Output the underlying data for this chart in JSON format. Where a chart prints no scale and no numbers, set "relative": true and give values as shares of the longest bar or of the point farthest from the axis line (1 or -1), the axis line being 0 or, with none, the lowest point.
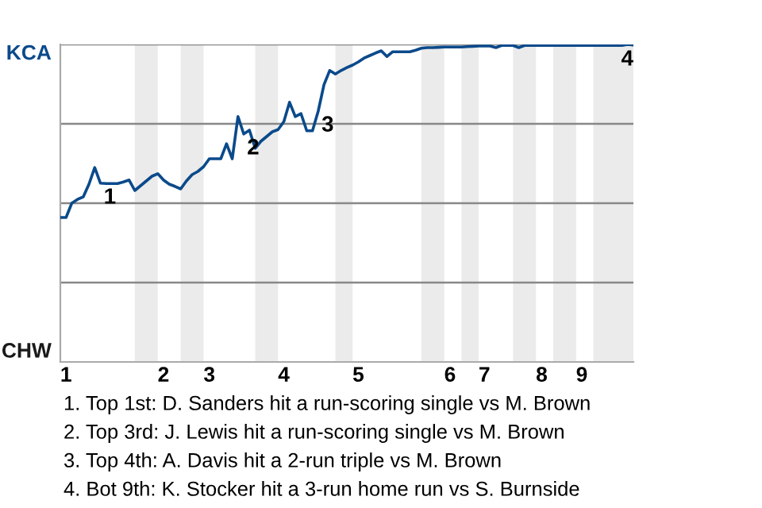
{
  "chart_data": {
    "type": "line",
    "relative": true,
    "categories": [
      null,
      "1",
      null,
      null,
      null,
      null,
      null,
      null,
      null,
      null,
      null,
      null,
      null,
      null,
      null,
      null,
      null,
      null,
      "2",
      null,
      null,
      null,
      null,
      null,
      null,
      null,
      "3",
      null,
      null,
      null,
      null,
      null,
      null,
      null,
      null,
      null,
      null,
      null,
      null,
      "4",
      null,
      null,
      null,
      null,
      null,
      null,
      null,
      null,
      null,
      null,
      null,
      null,
      "5",
      null,
      null,
      null,
      null,
      null,
      null,
      null,
      null,
      null,
      null,
      null,
      null,
      null,
      null,
      null,
      "6",
      null,
      null,
      null,
      null,
      null,
      "7",
      null,
      null,
      null,
      null,
      null,
      null,
      null,
      null,
      null,
      "8",
      null,
      null,
      null,
      null,
      null,
      null,
      "9",
      null,
      null,
      null,
      null,
      null,
      null,
      null,
      null,
      null
    ],
    "series": [
      {
        "color": "#0b4a8b",
        "values": [
          0.455,
          0.455,
          0.5,
          0.512,
          0.52,
          0.56,
          0.612,
          0.563,
          0.562,
          0.562,
          0.562,
          0.567,
          0.573,
          0.54,
          0.555,
          0.57,
          0.585,
          0.593,
          0.573,
          0.56,
          0.553,
          0.545,
          0.57,
          0.59,
          0.6,
          0.615,
          0.64,
          0.64,
          0.64,
          0.687,
          0.64,
          0.773,
          0.718,
          0.73,
          0.673,
          0.695,
          0.71,
          0.725,
          0.732,
          0.757,
          0.818,
          0.773,
          0.782,
          0.728,
          0.728,
          0.79,
          0.873,
          0.918,
          0.907,
          0.918,
          0.927,
          0.935,
          0.945,
          0.957,
          0.965,
          0.973,
          0.98,
          0.962,
          0.977,
          0.977,
          0.977,
          0.977,
          0.982,
          0.988,
          0.99,
          0.99,
          0.991,
          0.992,
          0.992,
          0.992,
          0.992,
          0.993,
          0.994,
          0.995,
          0.995,
          0.995,
          0.99,
          0.997,
          0.997,
          0.997,
          0.99,
          0.997,
          0.997,
          0.997,
          0.997,
          0.997,
          0.997,
          0.997,
          0.997,
          0.997,
          0.997,
          0.997,
          0.997,
          0.997,
          0.997,
          0.997,
          0.997,
          0.997,
          0.997,
          1,
          0.998
        ]
      }
    ],
    "ref_lines": [
      {
        "axis": "y",
        "value": 0.25,
        "color": "#888888"
      },
      {
        "axis": "y",
        "value": 0.5,
        "color": "#888888"
      },
      {
        "axis": "y",
        "value": 0.75,
        "color": "#888888"
      },
      {
        "axis": "y",
        "value": 1,
        "color": "#888888"
      }
    ],
    "annotations": [
      "KCA",
      "CHW",
      {
        "text": "1",
        "y": 0.563
      },
      {
        "text": "2",
        "y": 0.718
      },
      {
        "text": "3",
        "y": 0.79
      },
      {
        "text": "4",
        "y": 0.998
      },
      "1. Top 1st: D. Sanders hit a run-scoring single vs M. Brown",
      "2. Top 3rd: J. Lewis hit a run-scoring single vs M. Brown",
      "3. Top 4th: A. Davis hit a 2-run triple vs M. Brown",
      "4. Bot 9th: K. Stocker hit a 3-run home run vs S. Burnside"
    ]
  }
}
